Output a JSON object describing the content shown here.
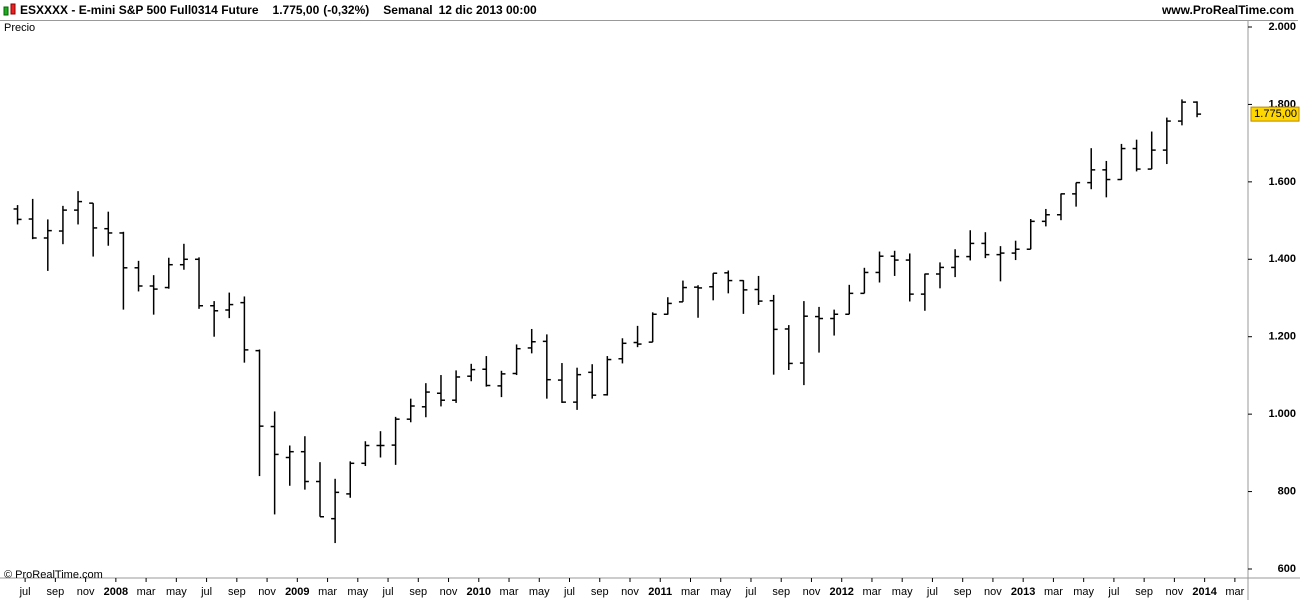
{
  "header": {
    "symbol": "ESXXXX - E-mini S&P 500 Full0314 Future",
    "change": "(-0,32%)",
    "period": "Semanal",
    "datetime": "12 dic 2013 00:00",
    "site": "www.ProRealTime.com"
  },
  "chart_data": {
    "type": "ohlc",
    "panel_label": "Precio",
    "copyright": "© ProRealTime.com",
    "color": "#000000",
    "last_price": {
      "value": 1775,
      "label": "1.775,00"
    },
    "last_price_color": "#ffd700",
    "x": [
      "2007-06",
      "2007-07",
      "2007-08",
      "2007-09",
      "2007-10",
      "2007-11",
      "2007-12",
      "2008-01",
      "2008-02",
      "2008-03",
      "2008-04",
      "2008-05",
      "2008-06",
      "2008-07",
      "2008-08",
      "2008-09",
      "2008-10",
      "2008-11",
      "2008-12",
      "2009-01",
      "2009-02",
      "2009-03",
      "2009-04",
      "2009-05",
      "2009-06",
      "2009-07",
      "2009-08",
      "2009-09",
      "2009-10",
      "2009-11",
      "2009-12",
      "2010-01",
      "2010-02",
      "2010-03",
      "2010-04",
      "2010-05",
      "2010-06",
      "2010-07",
      "2010-08",
      "2010-09",
      "2010-10",
      "2010-11",
      "2010-12",
      "2011-01",
      "2011-02",
      "2011-03",
      "2011-04",
      "2011-05",
      "2011-06",
      "2011-07",
      "2011-08",
      "2011-09",
      "2011-10",
      "2011-11",
      "2011-12",
      "2012-01",
      "2012-02",
      "2012-03",
      "2012-04",
      "2012-05",
      "2012-06",
      "2012-07",
      "2012-08",
      "2012-09",
      "2012-10",
      "2012-11",
      "2012-12",
      "2013-01",
      "2013-02",
      "2013-03",
      "2013-04",
      "2013-05",
      "2013-06",
      "2013-07",
      "2013-08",
      "2013-09",
      "2013-10",
      "2013-11",
      "2013-12"
    ],
    "open": [
      1530,
      1504,
      1455,
      1473,
      1527,
      1545,
      1479,
      1468,
      1378,
      1331,
      1327,
      1386,
      1400,
      1280,
      1269,
      1288,
      1164,
      968,
      888,
      903,
      826,
      730,
      794,
      873,
      919,
      920,
      987,
      1019,
      1054,
      1036,
      1098,
      1116,
      1073,
      1105,
      1171,
      1188,
      1088,
      1031,
      1108,
      1050,
      1143,
      1185,
      1186,
      1258,
      1290,
      1328,
      1329,
      1365,
      1345,
      1322,
      1293,
      1220,
      1132,
      1252,
      1247,
      1258,
      1312,
      1366,
      1408,
      1398,
      1310,
      1362,
      1379,
      1407,
      1441,
      1412,
      1416,
      1426,
      1498,
      1515,
      1569,
      1598,
      1631,
      1606,
      1686,
      1633,
      1682,
      1757,
      1806
    ],
    "high": [
      1540,
      1556,
      1503,
      1538,
      1576,
      1545,
      1523,
      1471,
      1396,
      1359,
      1404,
      1440,
      1405,
      1292,
      1314,
      1304,
      1167,
      1007,
      919,
      943,
      876,
      833,
      878,
      930,
      956,
      993,
      1040,
      1080,
      1101,
      1113,
      1130,
      1150,
      1112,
      1180,
      1220,
      1206,
      1132,
      1120,
      1129,
      1150,
      1196,
      1228,
      1263,
      1302,
      1345,
      1333,
      1364,
      1371,
      1346,
      1357,
      1308,
      1230,
      1292,
      1277,
      1270,
      1334,
      1378,
      1420,
      1422,
      1415,
      1363,
      1392,
      1426,
      1475,
      1470,
      1434,
      1448,
      1504,
      1530,
      1570,
      1598,
      1687,
      1654,
      1698,
      1709,
      1730,
      1766,
      1813,
      1808
    ],
    "low": [
      1490,
      1452,
      1370,
      1439,
      1490,
      1407,
      1435,
      1270,
      1317,
      1257,
      1324,
      1373,
      1272,
      1200,
      1248,
      1133,
      840,
      741,
      815,
      805,
      735,
      667,
      784,
      866,
      888,
      869,
      979,
      992,
      1020,
      1029,
      1085,
      1071,
      1044,
      1101,
      1157,
      1040,
      1029,
      1011,
      1040,
      1048,
      1131,
      1173,
      1186,
      1257,
      1290,
      1249,
      1294,
      1312,
      1259,
      1282,
      1102,
      1114,
      1075,
      1159,
      1203,
      1258,
      1312,
      1340,
      1357,
      1291,
      1267,
      1325,
      1354,
      1397,
      1403,
      1343,
      1398,
      1426,
      1485,
      1501,
      1536,
      1581,
      1560,
      1605,
      1627,
      1633,
      1646,
      1746,
      1767
    ],
    "close": [
      1503,
      1455,
      1474,
      1527,
      1549,
      1481,
      1468,
      1378,
      1331,
      1323,
      1386,
      1400,
      1280,
      1267,
      1283,
      1166,
      969,
      896,
      903,
      826,
      735,
      798,
      873,
      919,
      919,
      987,
      1021,
      1057,
      1036,
      1096,
      1115,
      1074,
      1104,
      1169,
      1187,
      1089,
      1031,
      1102,
      1049,
      1141,
      1183,
      1181,
      1258,
      1286,
      1327,
      1326,
      1364,
      1345,
      1321,
      1292,
      1219,
      1131,
      1253,
      1247,
      1258,
      1312,
      1366,
      1408,
      1398,
      1310,
      1362,
      1379,
      1407,
      1441,
      1412,
      1416,
      1426,
      1498,
      1515,
      1569,
      1598,
      1631,
      1606,
      1686,
      1633,
      1682,
      1757,
      1806,
      1775
    ],
    "xlim": [
      "2007-06",
      "2014-04"
    ],
    "xticks": [
      {
        "value": "2007-07",
        "label": "jul"
      },
      {
        "value": "2007-09",
        "label": "sep"
      },
      {
        "value": "2007-11",
        "label": "nov"
      },
      {
        "value": "2008-01",
        "label": "2008"
      },
      {
        "value": "2008-03",
        "label": "mar"
      },
      {
        "value": "2008-05",
        "label": "may"
      },
      {
        "value": "2008-07",
        "label": "jul"
      },
      {
        "value": "2008-09",
        "label": "sep"
      },
      {
        "value": "2008-11",
        "label": "nov"
      },
      {
        "value": "2009-01",
        "label": "2009"
      },
      {
        "value": "2009-03",
        "label": "mar"
      },
      {
        "value": "2009-05",
        "label": "may"
      },
      {
        "value": "2009-07",
        "label": "jul"
      },
      {
        "value": "2009-09",
        "label": "sep"
      },
      {
        "value": "2009-11",
        "label": "nov"
      },
      {
        "value": "2010-01",
        "label": "2010"
      },
      {
        "value": "2010-03",
        "label": "mar"
      },
      {
        "value": "2010-05",
        "label": "may"
      },
      {
        "value": "2010-07",
        "label": "jul"
      },
      {
        "value": "2010-09",
        "label": "sep"
      },
      {
        "value": "2010-11",
        "label": "nov"
      },
      {
        "value": "2011-01",
        "label": "2011"
      },
      {
        "value": "2011-03",
        "label": "mar"
      },
      {
        "value": "2011-05",
        "label": "may"
      },
      {
        "value": "2011-07",
        "label": "jul"
      },
      {
        "value": "2011-09",
        "label": "sep"
      },
      {
        "value": "2011-11",
        "label": "nov"
      },
      {
        "value": "2012-01",
        "label": "2012"
      },
      {
        "value": "2012-03",
        "label": "mar"
      },
      {
        "value": "2012-05",
        "label": "may"
      },
      {
        "value": "2012-07",
        "label": "jul"
      },
      {
        "value": "2012-09",
        "label": "sep"
      },
      {
        "value": "2012-11",
        "label": "nov"
      },
      {
        "value": "2013-01",
        "label": "2013"
      },
      {
        "value": "2013-03",
        "label": "mar"
      },
      {
        "value": "2013-05",
        "label": "may"
      },
      {
        "value": "2013-07",
        "label": "jul"
      },
      {
        "value": "2013-09",
        "label": "sep"
      },
      {
        "value": "2013-11",
        "label": "nov"
      },
      {
        "value": "2014-01",
        "label": "2014"
      },
      {
        "value": "2014-03",
        "label": "mar"
      }
    ],
    "ylim": [
      600,
      2000
    ],
    "yticks": [
      600,
      800,
      {
        "value": 1000,
        "label": "1.000"
      },
      {
        "value": 1200,
        "label": "1.200"
      },
      {
        "value": 1400,
        "label": "1.400"
      },
      {
        "value": 1600,
        "label": "1.600"
      },
      {
        "value": 1800,
        "label": "1.800"
      },
      {
        "value": 2000,
        "label": "2.000"
      }
    ]
  }
}
